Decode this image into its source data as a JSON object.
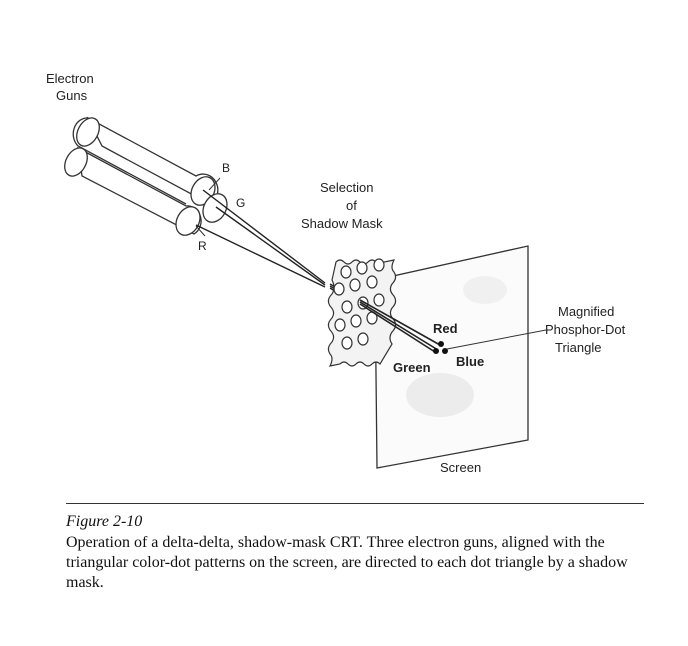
{
  "diagram": {
    "labels": {
      "electron_guns_line1": "Electron",
      "electron_guns_line2": "Guns",
      "gun_b": "B",
      "gun_g": "G",
      "gun_r": "R",
      "mask_line1": "Selection",
      "mask_line2": "of",
      "mask_line3": "Shadow Mask",
      "red": "Red",
      "green": "Green",
      "blue": "Blue",
      "magnified_line1": "Magnified",
      "magnified_line2": "Phosphor-Dot",
      "magnified_line3": "Triangle",
      "screen": "Screen"
    }
  },
  "caption": {
    "figure_label": "Figure 2-10",
    "text": "Operation of a delta-delta, shadow-mask CRT.  Three electron guns, aligned with the triangular color-dot patterns on the screen, are directed to each dot triangle by a shadow mask."
  }
}
